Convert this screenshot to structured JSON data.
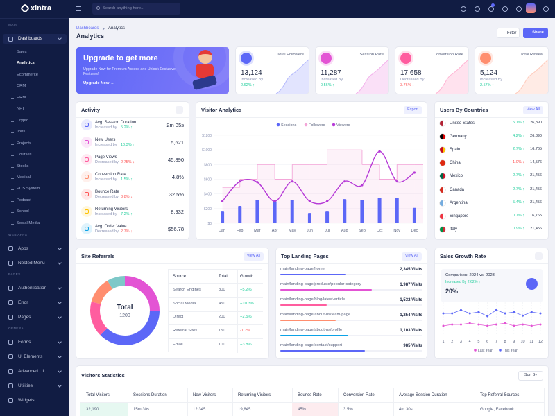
{
  "sidebar": {
    "brand": "xintra",
    "sections": [
      {
        "heading": "MAIN",
        "items": [
          {
            "label": "Dashboards",
            "expandable": true,
            "active_child": 1,
            "children": [
              "Sales",
              "Analytics",
              "Ecommerce",
              "CRM",
              "HRM",
              "NFT",
              "Crypto",
              "Jobs",
              "Projects",
              "Courses",
              "Stocks",
              "Medical",
              "POS System",
              "Podcast",
              "School",
              "Social Media"
            ]
          }
        ]
      },
      {
        "heading": "WEB APPS",
        "items": [
          {
            "label": "Apps",
            "expandable": true
          },
          {
            "label": "Nested Menu",
            "expandable": true
          }
        ]
      },
      {
        "heading": "PAGES",
        "items": [
          {
            "label": "Authentication",
            "expandable": true
          },
          {
            "label": "Error",
            "expandable": true
          },
          {
            "label": "Pages",
            "expandable": true
          }
        ]
      },
      {
        "heading": "GENERAL",
        "items": [
          {
            "label": "Forms",
            "expandable": true
          },
          {
            "label": "UI Elements",
            "expandable": true
          },
          {
            "label": "Advanced UI",
            "expandable": true
          },
          {
            "label": "Utilities",
            "expandable": true
          },
          {
            "label": "Widgets",
            "expandable": false
          }
        ]
      }
    ]
  },
  "header": {
    "search_placeholder": "Search anything here..."
  },
  "page": {
    "breadcrumb": [
      "Dashboards",
      "Analytics"
    ],
    "title": "Analytics",
    "buttons": [
      "Filter",
      "Share"
    ]
  },
  "upgrade": {
    "title": "Upgrade to get more",
    "text": "Upgrade Now for Premium Access and Unlock Exclusive Features!",
    "link": "Upgrade Now →"
  },
  "stats": [
    {
      "label": "Total Followers",
      "value": "13,124",
      "trend": "Increased By",
      "change": "2.62% ↑",
      "color": "#5c67f7"
    },
    {
      "label": "Session Rate",
      "value": "11,287",
      "trend": "Increased By",
      "change": "0.56% ↑",
      "color": "#e354d4"
    },
    {
      "label": "Conversion Rate",
      "value": "17,658",
      "trend": "Decreased By",
      "change": "3.76% ↓",
      "color": "#ff5d9f"
    },
    {
      "label": "Total Review",
      "value": "5,124",
      "trend": "Increased By",
      "change": "2.57% ↑",
      "color": "#ff8e6f"
    }
  ],
  "activity": {
    "title": "Activity",
    "items": [
      {
        "label": "Avg. Session Duration",
        "trend": "Increased by",
        "change": "5.2% ↑",
        "value": "2m 35s",
        "color": "#5c67f7"
      },
      {
        "label": "New Users",
        "trend": "Increased by",
        "change": "10.3% ↑",
        "value": "5,621",
        "color": "#e354d4"
      },
      {
        "label": "Page Views",
        "trend": "Decreased by",
        "change": "2.75% ↓",
        "value": "45,890",
        "color": "#ff5d9f"
      },
      {
        "label": "Conversion Rate",
        "trend": "Increased by",
        "change": "1.5% ↑",
        "value": "4.8%",
        "color": "#ff8e6f"
      },
      {
        "label": "Bounce Rate",
        "trend": "Decreased by",
        "change": "3.8% ↓",
        "value": "32.5%",
        "color": "#fe5454"
      },
      {
        "label": "Returning Visitors",
        "trend": "Increased by",
        "change": "7.2% ↑",
        "value": "8,932",
        "color": "#ffc102"
      },
      {
        "label": "Avg. Order Value",
        "trend": "Decreased by",
        "change": "2.7% ↓",
        "value": "$56.78",
        "color": "#0ca3e7"
      }
    ]
  },
  "visitor_analytics": {
    "type": "bar-step-line",
    "title": "Visitor Analytics",
    "button": "Export",
    "categories": [
      "Jan",
      "Feb",
      "Mar",
      "Apr",
      "May",
      "Jun",
      "Jul",
      "Aug",
      "Sep",
      "Oct",
      "Nov",
      "Dec"
    ],
    "series": [
      {
        "name": "Sessions",
        "color": "#5c67f7",
        "values": [
          160,
          236,
          320,
          300,
          320,
          140,
          160,
          330,
          320,
          350,
          350,
          210
        ]
      },
      {
        "name": "Followers",
        "color": "#f3a6d8",
        "values": [
          490,
          600,
          800,
          600,
          800,
          800,
          1000,
          1000,
          800,
          600,
          800,
          800
        ]
      },
      {
        "name": "Viewers",
        "color": "#b63ad7",
        "values": [
          300,
          570,
          560,
          300,
          570,
          300,
          300,
          570,
          520,
          980,
          570,
          690
        ]
      }
    ],
    "ylim": [
      0,
      1200
    ],
    "yticks": [
      {
        "value": 0,
        "label": "$0"
      },
      {
        "value": 200,
        "label": "$200"
      },
      {
        "value": 400,
        "label": "$400"
      },
      {
        "value": 600,
        "label": "$600"
      },
      {
        "value": 800,
        "label": "$800"
      },
      {
        "value": 1000,
        "label": "$1000"
      },
      {
        "value": 1200,
        "label": "$1200"
      }
    ]
  },
  "countries": {
    "title": "Users By Countries",
    "link": "View All",
    "rows": [
      {
        "name": "United States",
        "change": "5.1% ↑",
        "value": "26,890"
      },
      {
        "name": "Germany",
        "change": "4.2% ↑",
        "value": "26,890"
      },
      {
        "name": "Spain",
        "change": "2.7% ↑",
        "value": "16,765"
      },
      {
        "name": "China",
        "change": "1.0% ↓",
        "value": "14,576"
      },
      {
        "name": "Mexico",
        "change": "2.7% ↑",
        "value": "21,456"
      },
      {
        "name": "Canada",
        "change": "2.7% ↑",
        "value": "21,456"
      },
      {
        "name": "Argentina",
        "change": "5.4% ↑",
        "value": "21,456"
      },
      {
        "name": "Singapore",
        "change": "0.7% ↑",
        "value": "16,765"
      },
      {
        "name": "Italy",
        "change": "0.9% ↑",
        "value": "21,456"
      }
    ]
  },
  "site_referrals": {
    "title": "Site Referrals",
    "link": "View All",
    "center_label": "Total",
    "center_value": "1200",
    "columns": [
      "Source",
      "Total",
      "Growth"
    ],
    "rows": [
      {
        "source": "Search Engines",
        "total": 300,
        "growth": "+5.2%",
        "color": "#e354d4"
      },
      {
        "source": "Social Media",
        "total": 450,
        "growth": "+10.3%",
        "color": "#5c67f7"
      },
      {
        "source": "Direct",
        "total": 200,
        "growth": "+2.5%",
        "color": "#ff5d9f"
      },
      {
        "source": "Referral Sites",
        "total": 150,
        "growth": "-1.2%",
        "color": "#ff8e6f"
      },
      {
        "source": "Email",
        "total": 100,
        "growth": "+3.8%",
        "color": "#7ec8c8"
      }
    ]
  },
  "landing_pages": {
    "title": "Top Landing Pages",
    "link": "View All",
    "rows": [
      {
        "path": "main/landing-page/home",
        "visits": "2,345 Visits",
        "color": "#5c67f7"
      },
      {
        "path": "main/landing-page/products/popular-category",
        "visits": "1,987 Visits",
        "color": "#e354d4"
      },
      {
        "path": "main/landing-page/blog/latest-article",
        "visits": "1,532 Visits",
        "color": "#ff5d9f"
      },
      {
        "path": "main/landing-page/about-us/team-page",
        "visits": "1,254 Visits",
        "color": "#ff8e6f"
      },
      {
        "path": "main/landing-page/about-us/profile",
        "visits": "1,103 Visits",
        "color": "#0ca3e7"
      },
      {
        "path": "main/landing-page/contact/support",
        "visits": "985 Visits",
        "color": "#5c67f7"
      }
    ]
  },
  "sales_growth": {
    "type": "line",
    "title": "Sales Growth Rate",
    "comparison": "Comparison: 2024 vs. 2023",
    "trend": "Increased By 2.62% ↑",
    "rate": "20%",
    "x": [
      1,
      2,
      3,
      4,
      5,
      6,
      7,
      8,
      9,
      10,
      11,
      12
    ],
    "xlim": [
      1,
      12
    ],
    "xticks": [
      1,
      2,
      3,
      4,
      5,
      6,
      7,
      8,
      9,
      10,
      11,
      12
    ],
    "ylim": [
      0,
      100
    ],
    "series": [
      {
        "name": "Last Year",
        "color": "#e354d4",
        "values": [
          25,
          30,
          30,
          35,
          30,
          25,
          30,
          35,
          25,
          30,
          25,
          30
        ]
      },
      {
        "name": "This Year",
        "color": "#5c67f7",
        "values": [
          70,
          70,
          82,
          70,
          75,
          60,
          82,
          70,
          75,
          62,
          75,
          70
        ]
      }
    ]
  },
  "visitors_statistics": {
    "title": "Visitors Statistics",
    "button": "Sort By",
    "columns": [
      "Total Visitors",
      "Sessions Duration",
      "New Visitors",
      "Returning Visitors",
      "Bounce Rate",
      "Conversion Rate",
      "Average Session Duration",
      "Top Referral Sources"
    ],
    "rows": [
      [
        "32,190",
        "15m 30s",
        "12,345",
        "19,845",
        "45%",
        "3.5%",
        "4m 30s",
        "Google, Facebook"
      ]
    ]
  }
}
